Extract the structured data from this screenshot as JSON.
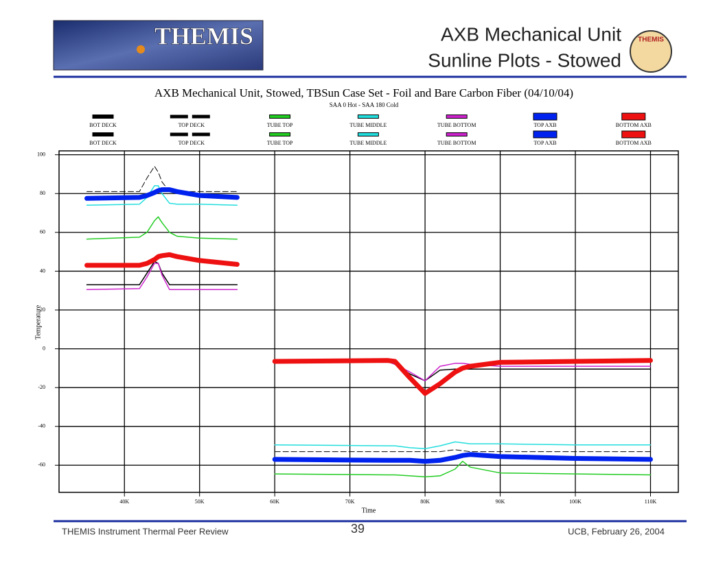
{
  "header": {
    "logo_text": "THEMIS",
    "title_line1": "AXB Mechanical Unit",
    "title_line2": "Sunline Plots - Stowed",
    "badge_text": "THEMIS"
  },
  "chart_data": {
    "type": "line",
    "title": "AXB Mechanical Unit, Stowed, TBSun Case Set - Foil and Bare Carbon Fiber  (04/10/04)",
    "subtitle": "SAA 0 Hot  - SAA 180 Cold",
    "x_label": "Time",
    "y_label": "Temperature",
    "xlim": [
      31300,
      113700
    ],
    "ylim": [
      -74,
      102
    ],
    "xticks": [
      {
        "value": 40000,
        "label": "40K"
      },
      {
        "value": 50000,
        "label": "50K"
      },
      {
        "value": 60000,
        "label": "60K"
      },
      {
        "value": 70000,
        "label": "70K"
      },
      {
        "value": 80000,
        "label": "80K"
      },
      {
        "value": 90000,
        "label": "90K"
      },
      {
        "value": 100000,
        "label": "100K"
      },
      {
        "value": 110000,
        "label": "110K"
      }
    ],
    "yticks": [
      100,
      80,
      60,
      40,
      20,
      0,
      -20,
      -40,
      -60
    ],
    "grid": true,
    "x": [
      35000,
      42000,
      43000,
      44000,
      44500,
      45000,
      46000,
      47000,
      50000,
      55000,
      60000,
      75000,
      76000,
      78000,
      80000,
      82000,
      84000,
      85000,
      86000,
      90000,
      100000,
      110000
    ],
    "series": [
      {
        "name": "BOT DECK",
        "color": "#000000",
        "linewidth": 1.5,
        "dashed": false,
        "values": [
          33,
          33,
          39,
          45,
          44,
          39,
          33,
          33,
          33,
          33,
          null,
          null,
          null,
          null,
          null,
          null,
          null,
          null,
          null,
          null,
          null,
          null
        ]
      },
      {
        "name": "TOP DECK",
        "color": "#000000",
        "linewidth": 1,
        "dashed": true,
        "values": [
          81,
          81,
          88,
          94,
          91,
          86,
          81,
          81,
          81,
          81,
          null,
          null,
          null,
          null,
          null,
          null,
          null,
          null,
          null,
          null,
          null,
          null
        ]
      },
      {
        "name": "TUBE TOP",
        "color": "#22cc22",
        "linewidth": 1.5,
        "dashed": false,
        "values": [
          56.5,
          57.5,
          60,
          66,
          68,
          65,
          60,
          58,
          57,
          56.5,
          null,
          null,
          null,
          null,
          null,
          null,
          null,
          null,
          null,
          null,
          null,
          null
        ]
      },
      {
        "name": "TUBE MIDDLE",
        "color": "#22dddd",
        "linewidth": 1.5,
        "dashed": false,
        "values": [
          74,
          74.5,
          78,
          84,
          84,
          80,
          75,
          74.5,
          74.5,
          74,
          null,
          null,
          null,
          null,
          null,
          null,
          null,
          null,
          null,
          null,
          null,
          null
        ]
      },
      {
        "name": "TUBE BOTTOM",
        "color": "#cc22cc",
        "linewidth": 1.5,
        "dashed": false,
        "values": [
          30.5,
          31,
          37,
          44,
          44,
          38,
          30.5,
          30.5,
          30.5,
          30.5,
          null,
          null,
          null,
          null,
          null,
          null,
          null,
          null,
          null,
          null,
          null,
          null
        ]
      },
      {
        "name": "TOP AXB",
        "color": "#0022ee",
        "linewidth": 7,
        "dashed": false,
        "values": [
          77.5,
          78,
          79,
          80.5,
          81.5,
          82,
          82,
          81,
          79,
          78,
          null,
          null,
          null,
          null,
          null,
          null,
          null,
          null,
          null,
          null,
          null,
          null
        ]
      },
      {
        "name": "BOTTOM AXB",
        "color": "#ee1111",
        "linewidth": 7,
        "dashed": false,
        "values": [
          43,
          43,
          44,
          46,
          47.5,
          48,
          48.5,
          47.5,
          45.5,
          43.5,
          null,
          null,
          null,
          null,
          null,
          null,
          null,
          null,
          null,
          null,
          null,
          null
        ]
      },
      {
        "name": "BOT DECK",
        "color": "#000000",
        "linewidth": 1.5,
        "dashed": false,
        "values": [
          null,
          null,
          null,
          null,
          null,
          null,
          null,
          null,
          null,
          null,
          -6.5,
          -6.5,
          -8,
          -13,
          -16.5,
          -11,
          -10.5,
          -10.5,
          -10.5,
          -10.5,
          -10.5,
          -10.5
        ]
      },
      {
        "name": "TOP DECK",
        "color": "#000000",
        "linewidth": 1,
        "dashed": true,
        "values": [
          null,
          null,
          null,
          null,
          null,
          null,
          null,
          null,
          null,
          null,
          -53,
          -53,
          -53,
          -53,
          -53,
          -53,
          -52,
          -52.5,
          -53,
          -53,
          -53,
          -53
        ]
      },
      {
        "name": "TUBE TOP",
        "color": "#22cc22",
        "linewidth": 1.5,
        "dashed": false,
        "values": [
          null,
          null,
          null,
          null,
          null,
          null,
          null,
          null,
          null,
          null,
          -64.5,
          -65,
          -65,
          -65.5,
          -66,
          -65.5,
          -62,
          -58,
          -61,
          -64,
          -64.5,
          -65
        ]
      },
      {
        "name": "TUBE MIDDLE",
        "color": "#22dddd",
        "linewidth": 1.5,
        "dashed": false,
        "values": [
          null,
          null,
          null,
          null,
          null,
          null,
          null,
          null,
          null,
          null,
          -49.5,
          -50,
          -50,
          -51,
          -51.5,
          -50,
          -48,
          -48.5,
          -49,
          -49,
          -49.5,
          -49.5
        ]
      },
      {
        "name": "TUBE BOTTOM",
        "color": "#cc22cc",
        "linewidth": 1.5,
        "dashed": false,
        "values": [
          null,
          null,
          null,
          null,
          null,
          null,
          null,
          null,
          null,
          null,
          -6.5,
          -6.5,
          -8,
          -12,
          -16.5,
          -9,
          -7.5,
          -7.5,
          -8,
          -9,
          -9,
          -9
        ]
      },
      {
        "name": "TOP AXB",
        "color": "#0022ee",
        "linewidth": 7,
        "dashed": false,
        "values": [
          null,
          null,
          null,
          null,
          null,
          null,
          null,
          null,
          null,
          null,
          -57,
          -57.5,
          -57.5,
          -57.5,
          -58,
          -57.5,
          -56,
          -55,
          -54.5,
          -55.5,
          -56.5,
          -57
        ]
      },
      {
        "name": "BOTTOM AXB",
        "color": "#ee1111",
        "linewidth": 7,
        "dashed": false,
        "values": [
          null,
          null,
          null,
          null,
          null,
          null,
          null,
          null,
          null,
          null,
          -6.5,
          -6,
          -6.5,
          -15,
          -23,
          -18,
          -12,
          -10,
          -9,
          -7,
          -6.5,
          -6
        ]
      }
    ]
  },
  "footer": {
    "left": "THEMIS Instrument Thermal Peer Review",
    "page": "39",
    "right": "UCB, February 26, 2004"
  }
}
